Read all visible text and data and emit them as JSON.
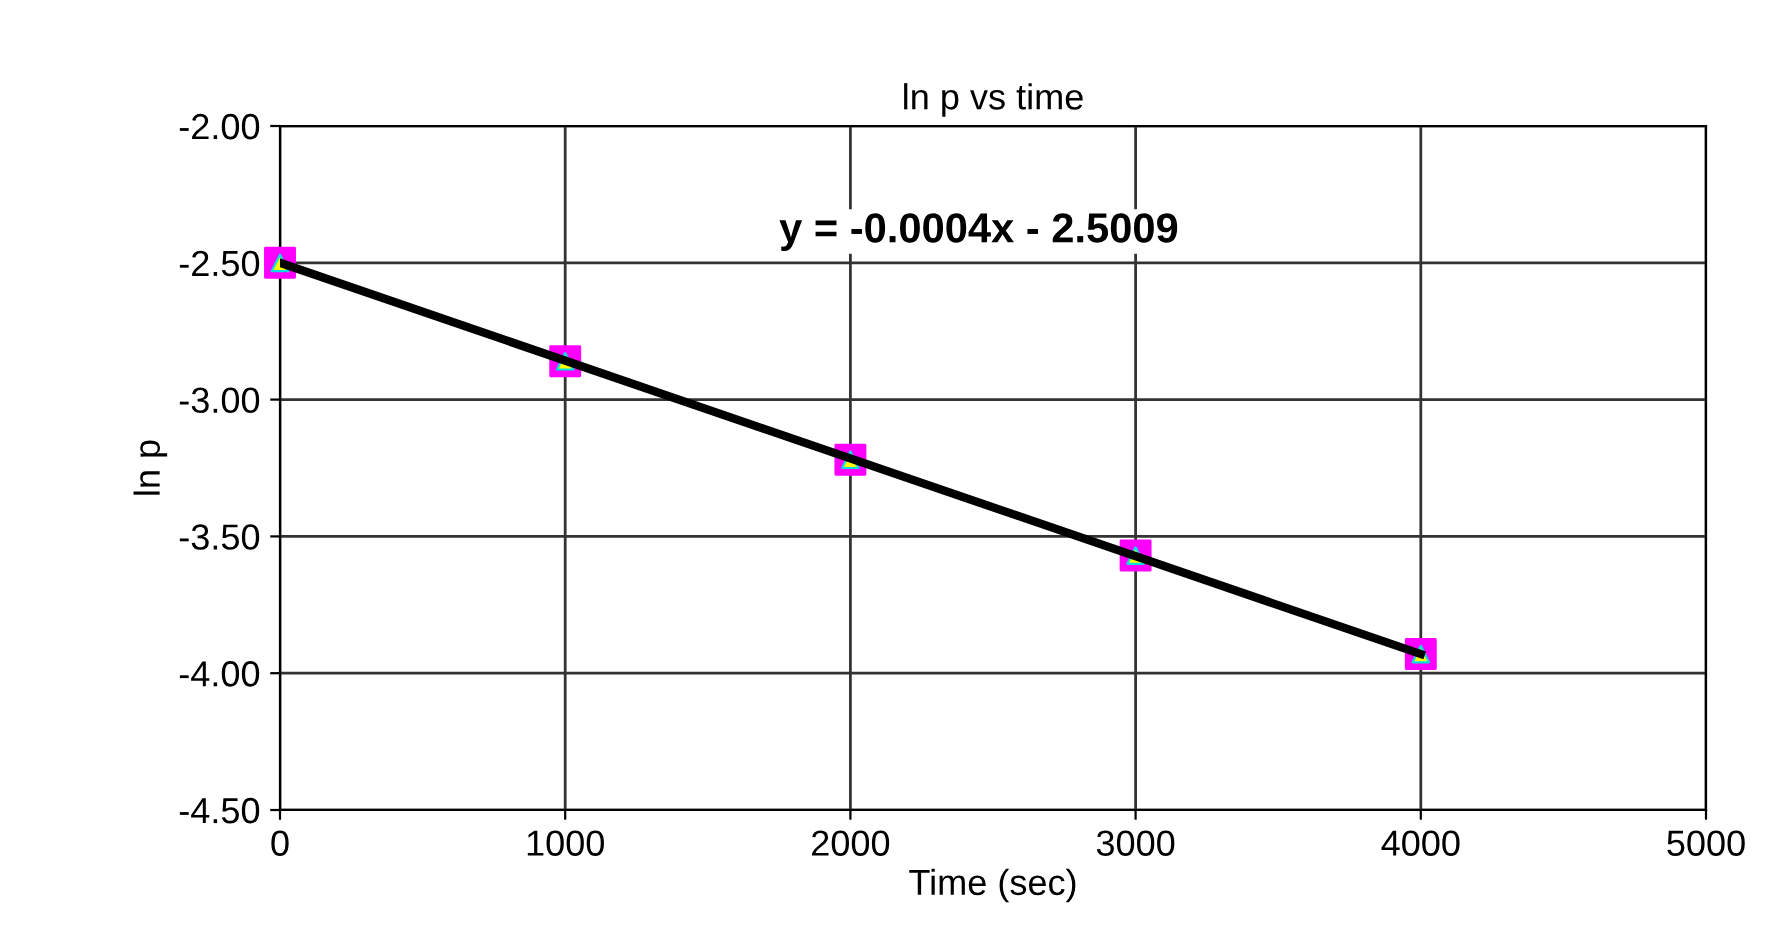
{
  "chart_data": {
    "type": "scatter",
    "title": "ln p vs time",
    "xlabel": "Time (sec)",
    "ylabel": "ln p",
    "x": [
      0,
      1000,
      2000,
      3000,
      4000
    ],
    "series": [
      {
        "color": "#ff00ff",
        "marker": "square",
        "values": [
          -2.5,
          -2.86,
          -3.22,
          -3.57,
          -3.93
        ]
      },
      {
        "type": "line",
        "color": "#000000",
        "x": [
          0,
          4000
        ],
        "values": [
          -2.5,
          -3.93
        ]
      }
    ],
    "annotations": [
      "y = -0.0004x - 2.5009"
    ],
    "xlim": [
      0,
      5000
    ],
    "xticks": [
      0,
      1000,
      2000,
      3000,
      4000,
      5000
    ],
    "ylim": [
      -4.5,
      -2.0
    ],
    "yticks": [
      {
        "value": -2.0,
        "label": "-2.00"
      },
      {
        "value": -2.5,
        "label": "-2.50"
      },
      {
        "value": -3.0,
        "label": "-3.00"
      },
      {
        "value": -3.5,
        "label": "-3.50"
      },
      {
        "value": -4.0,
        "label": "-4.00"
      },
      {
        "value": -4.5,
        "label": "-4.50"
      }
    ],
    "grid": true,
    "legend": false
  }
}
